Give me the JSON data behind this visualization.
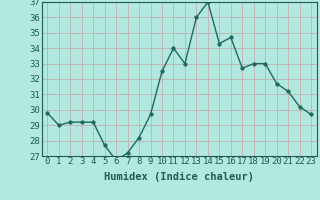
{
  "x": [
    0,
    1,
    2,
    3,
    4,
    5,
    6,
    7,
    8,
    9,
    10,
    11,
    12,
    13,
    14,
    15,
    16,
    17,
    18,
    19,
    20,
    21,
    22,
    23
  ],
  "y": [
    29.8,
    29.0,
    29.2,
    29.2,
    29.2,
    27.7,
    26.7,
    27.2,
    28.2,
    29.7,
    32.5,
    34.0,
    33.0,
    36.0,
    37.0,
    34.3,
    34.7,
    32.7,
    33.0,
    33.0,
    31.7,
    31.2,
    30.2,
    29.7
  ],
  "line_color": "#1e6b5e",
  "marker": "o",
  "marker_size": 2.5,
  "linewidth": 1.0,
  "bg_color": "#b3e8e0",
  "grid_color": "#c0b0b0",
  "xlabel": "Humidex (Indice chaleur)",
  "ylim": [
    27,
    37
  ],
  "xlim": [
    -0.5,
    23.5
  ],
  "yticks": [
    27,
    28,
    29,
    30,
    31,
    32,
    33,
    34,
    35,
    36,
    37
  ],
  "xticks": [
    0,
    1,
    2,
    3,
    4,
    5,
    6,
    7,
    8,
    9,
    10,
    11,
    12,
    13,
    14,
    15,
    16,
    17,
    18,
    19,
    20,
    21,
    22,
    23
  ],
  "xlabel_fontsize": 7.5,
  "tick_fontsize": 6.5,
  "text_color": "#1e5c50"
}
